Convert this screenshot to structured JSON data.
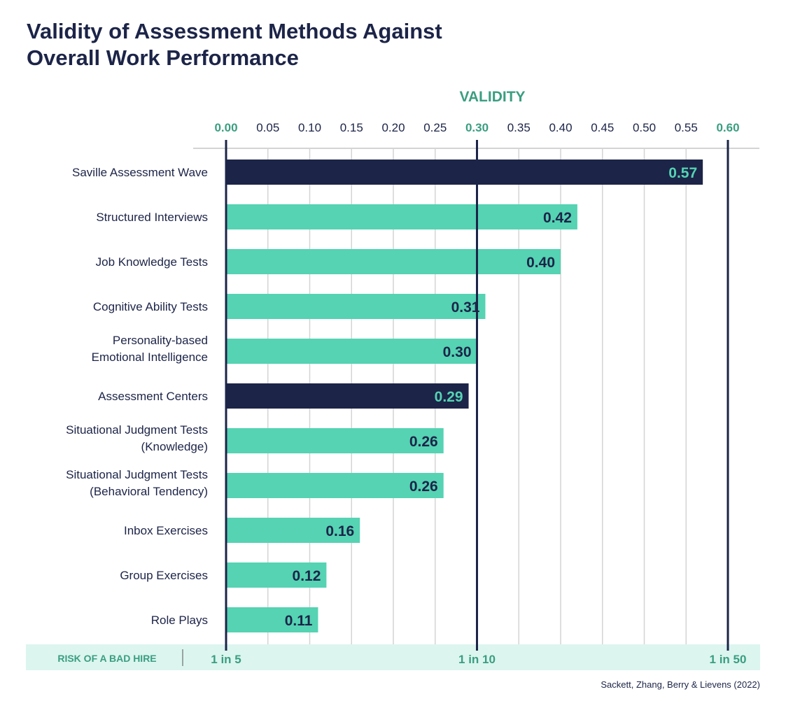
{
  "title": "Validity of Assessment Methods Against Overall Work Performance",
  "source": "Sackett, Zhang, Berry & Lievens (2022)",
  "colors": {
    "navy": "#1c2448",
    "teal": "#55d3b3",
    "green_text": "#3a9e80",
    "band": "#dcf5ef",
    "grid": "#d4d4d4"
  },
  "chart_data": {
    "type": "bar",
    "orientation": "horizontal",
    "xlabel": "VALIDITY",
    "xlim": [
      0,
      0.6
    ],
    "xticks": [
      "0.00",
      "0.05",
      "0.10",
      "0.15",
      "0.20",
      "0.25",
      "0.30",
      "0.35",
      "0.40",
      "0.45",
      "0.50",
      "0.55",
      "0.60"
    ],
    "highlight_ticks": [
      "0.00",
      "0.30",
      "0.60"
    ],
    "categories": [
      [
        "Saville Assessment Wave"
      ],
      [
        "Structured Interviews"
      ],
      [
        "Job Knowledge Tests"
      ],
      [
        "Cognitive Ability Tests"
      ],
      [
        "Personality-based",
        "Emotional Intelligence"
      ],
      [
        "Assessment Centers"
      ],
      [
        "Situational Judgment Tests",
        "(Knowledge)"
      ],
      [
        "Situational Judgment Tests",
        "(Behavioral Tendency)"
      ],
      [
        "Inbox Exercises"
      ],
      [
        "Group Exercises"
      ],
      [
        "Role Plays"
      ]
    ],
    "values": [
      0.57,
      0.42,
      0.4,
      0.31,
      0.3,
      0.29,
      0.26,
      0.26,
      0.16,
      0.12,
      0.11
    ],
    "value_labels": [
      "0.57",
      "0.42",
      "0.40",
      "0.31",
      "0.30",
      "0.29",
      "0.26",
      "0.26",
      "0.16",
      "0.12",
      "0.11"
    ],
    "dark_bars": [
      0,
      5
    ],
    "risk": {
      "label": "RISK OF A BAD HIRE",
      "marks": [
        {
          "x": 0.0,
          "text": "1 in 5"
        },
        {
          "x": 0.3,
          "text": "1 in 10"
        },
        {
          "x": 0.6,
          "text": "1 in 50"
        }
      ]
    }
  }
}
